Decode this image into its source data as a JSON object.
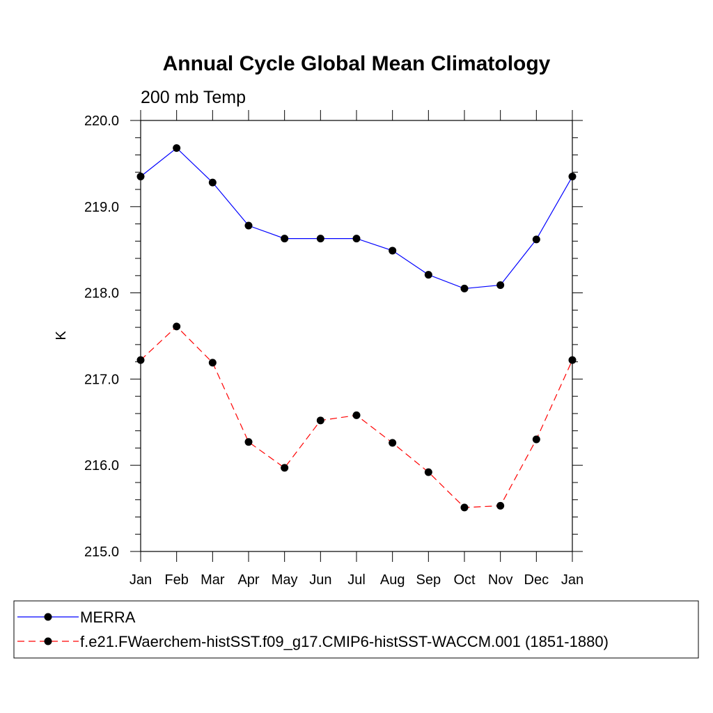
{
  "chart_data": {
    "type": "line",
    "title": "Annual Cycle Global Mean Climatology",
    "subtitle": "200 mb Temp",
    "xlabel": "",
    "ylabel": "K",
    "categories": [
      "Jan",
      "Feb",
      "Mar",
      "Apr",
      "May",
      "Jun",
      "Jul",
      "Aug",
      "Sep",
      "Oct",
      "Nov",
      "Dec",
      "Jan"
    ],
    "ylim": [
      215.0,
      220.0
    ],
    "yticks": [
      215.0,
      216.0,
      217.0,
      218.0,
      219.0,
      220.0
    ],
    "ytick_labels": [
      "215.0",
      "216.0",
      "217.0",
      "218.0",
      "219.0",
      "220.0"
    ],
    "grid": false,
    "legend_position": "bottom",
    "series": [
      {
        "name": "MERRA",
        "color": "#0000ff",
        "dashed": false,
        "values": [
          219.35,
          219.68,
          219.28,
          218.78,
          218.63,
          218.63,
          218.63,
          218.49,
          218.21,
          218.05,
          218.09,
          218.62,
          219.35
        ]
      },
      {
        "name": "f.e21.FWaerchem-histSST.f09_g17.CMIP6-histSST-WACCM.001 (1851-1880)",
        "color": "#ff0000",
        "dashed": true,
        "values": [
          217.22,
          217.61,
          217.19,
          216.27,
          215.97,
          216.52,
          216.58,
          216.26,
          215.92,
          215.51,
          215.53,
          216.3,
          217.22
        ]
      }
    ]
  }
}
